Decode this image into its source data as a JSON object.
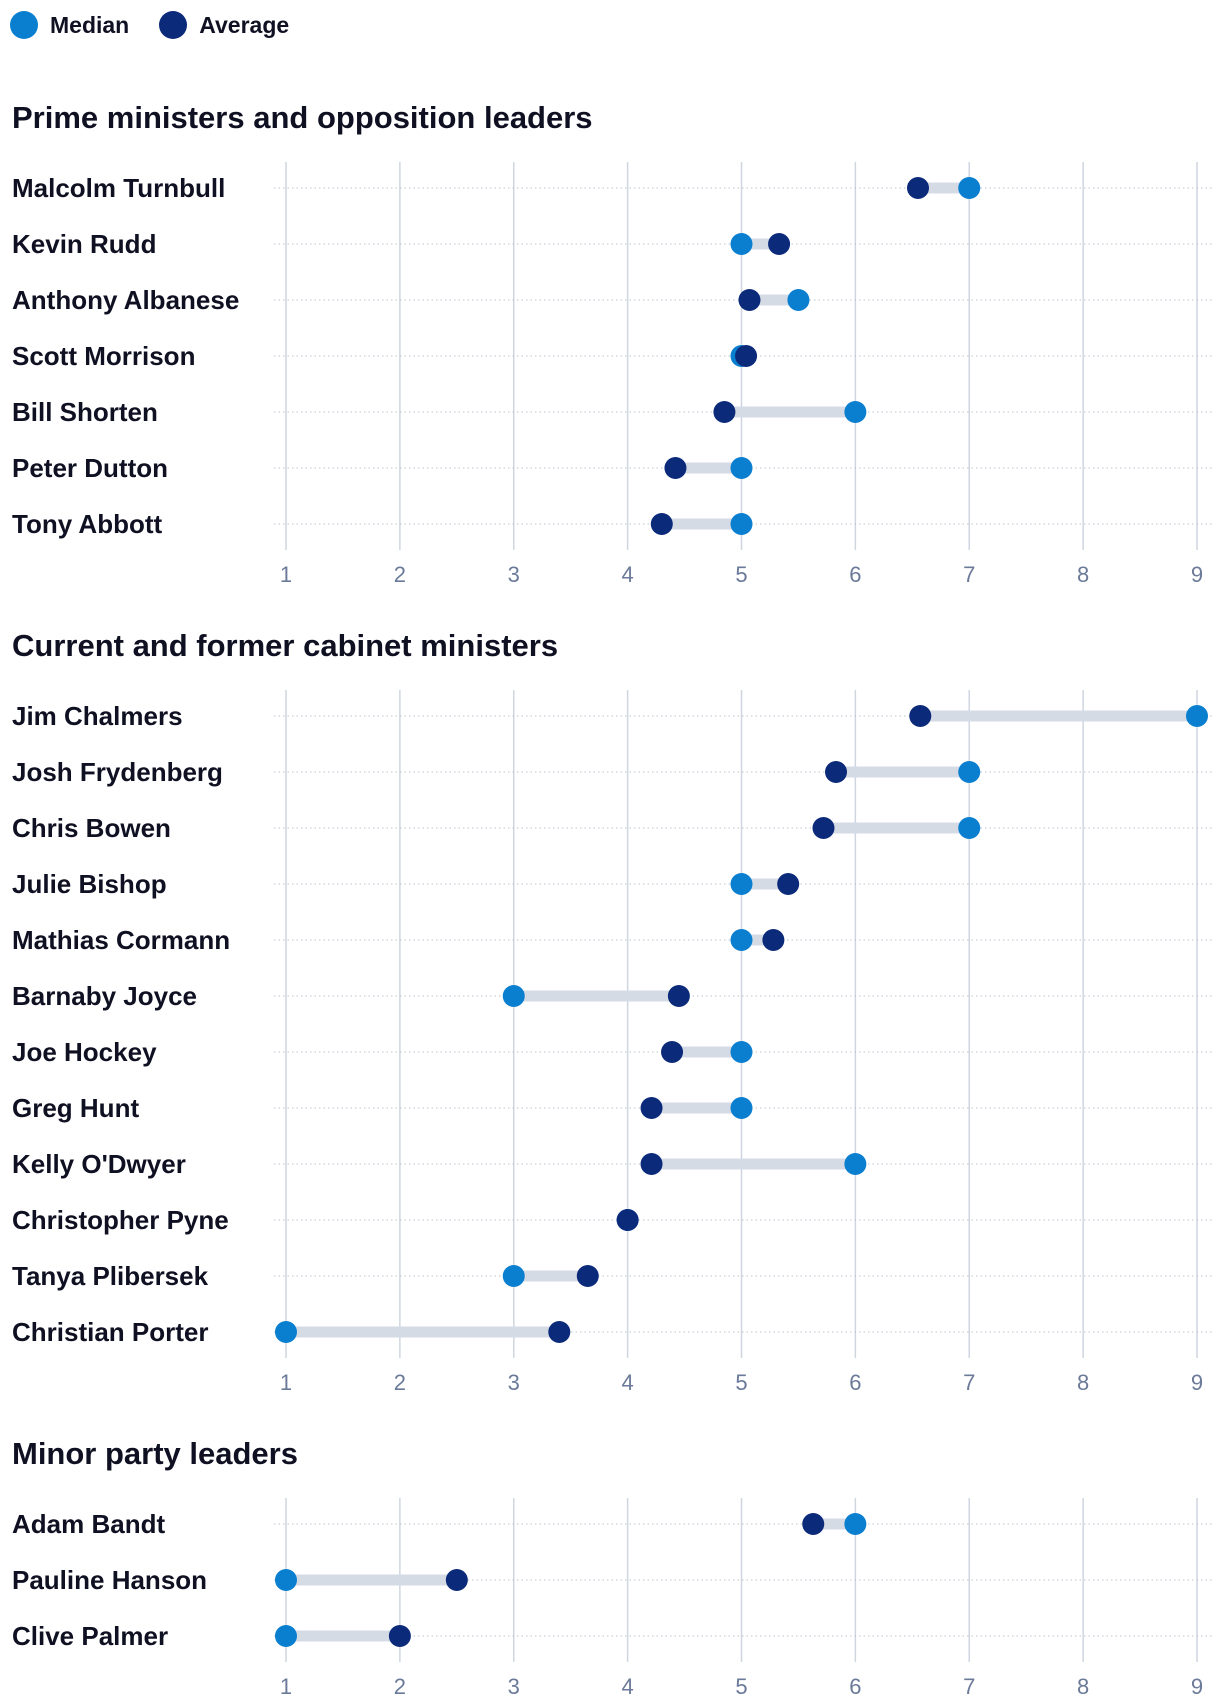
{
  "legend": {
    "median_label": "Median",
    "average_label": "Average"
  },
  "colors": {
    "median": "#0a7fd0",
    "average": "#0b2a7a",
    "connector": "#d5dbe4",
    "gridline": "#cfd6e0",
    "row_guide": "#b9c2cf"
  },
  "chart_data": [
    {
      "type": "dumbbell",
      "title": "Prime ministers and opposition leaders",
      "xlim": [
        1,
        9
      ],
      "xticks": [
        "1",
        "2",
        "3",
        "4",
        "5",
        "6",
        "7",
        "8",
        "9"
      ],
      "series": [
        {
          "name": "Median",
          "values": [
            7,
            5,
            5.5,
            5,
            6,
            5,
            5
          ]
        },
        {
          "name": "Average",
          "values": [
            6.55,
            5.33,
            5.07,
            5.04,
            4.85,
            4.42,
            4.3
          ]
        }
      ],
      "categories": [
        "Malcolm Turnbull",
        "Kevin Rudd",
        "Anthony Albanese",
        "Scott Morrison",
        "Bill Shorten",
        "Peter Dutton",
        "Tony Abbott"
      ]
    },
    {
      "type": "dumbbell",
      "title": "Current and former cabinet ministers",
      "xlim": [
        1,
        9
      ],
      "xticks": [
        "1",
        "2",
        "3",
        "4",
        "5",
        "6",
        "7",
        "8",
        "9"
      ],
      "series": [
        {
          "name": "Median",
          "values": [
            9,
            7,
            7,
            5,
            5,
            3,
            5,
            5,
            6,
            4,
            3,
            1
          ]
        },
        {
          "name": "Average",
          "values": [
            6.57,
            5.83,
            5.72,
            5.41,
            5.28,
            4.45,
            4.39,
            4.21,
            4.21,
            4,
            3.65,
            3.4
          ]
        }
      ],
      "categories": [
        "Jim Chalmers",
        "Josh Frydenberg",
        "Chris Bowen",
        "Julie Bishop",
        "Mathias Cormann",
        "Barnaby Joyce",
        "Joe Hockey",
        "Greg Hunt",
        "Kelly O'Dwyer",
        "Christopher Pyne",
        "Tanya Plibersek",
        "Christian Porter"
      ]
    },
    {
      "type": "dumbbell",
      "title": "Minor party leaders",
      "xlim": [
        1,
        9
      ],
      "xticks": [
        "1",
        "2",
        "3",
        "4",
        "5",
        "6",
        "7",
        "8",
        "9"
      ],
      "series": [
        {
          "name": "Median",
          "values": [
            6,
            1,
            1
          ]
        },
        {
          "name": "Average",
          "values": [
            5.63,
            2.5,
            2
          ]
        }
      ],
      "categories": [
        "Adam Bandt",
        "Pauline Hanson",
        "Clive Palmer"
      ]
    }
  ]
}
